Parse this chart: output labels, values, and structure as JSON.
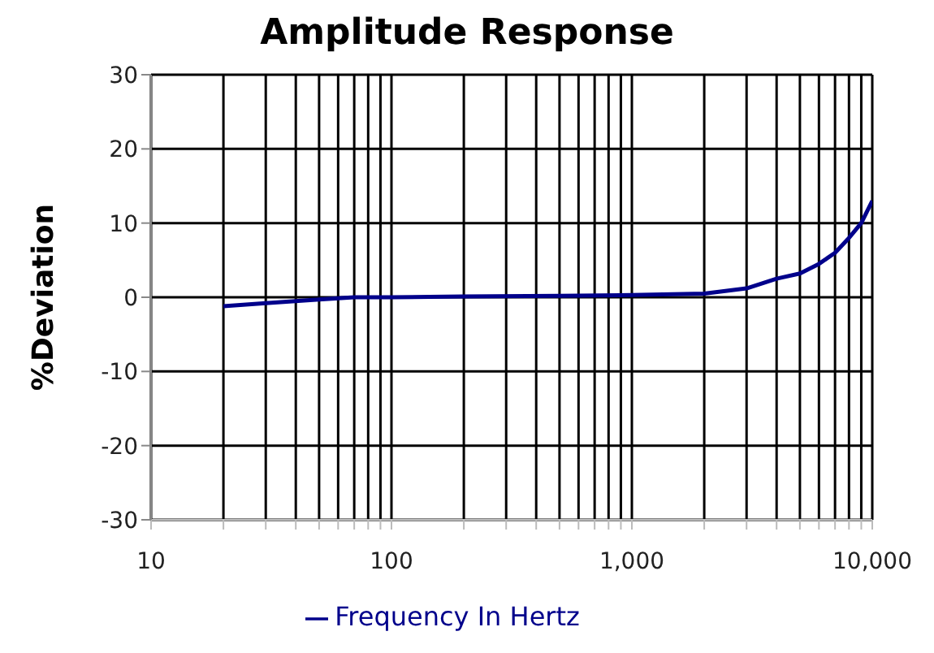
{
  "chart_data": {
    "type": "line",
    "title": "Amplitude Response",
    "ylabel": "%Deviation",
    "x": [
      20,
      30,
      50,
      70,
      100,
      200,
      500,
      1000,
      2000,
      3000,
      4000,
      5000,
      6000,
      7000,
      8000,
      9000,
      10000
    ],
    "series": [
      {
        "name": "Frequency In Hertz",
        "color": "#00008b",
        "values": [
          -1.2,
          -0.8,
          -0.3,
          0,
          0,
          0.1,
          0.2,
          0.3,
          0.5,
          1.2,
          2.5,
          3.2,
          4.5,
          6,
          8,
          10,
          13
        ]
      }
    ],
    "log": "x",
    "xlim": [
      10,
      10000
    ],
    "xticks": [
      10,
      {
        "value": 20,
        "label": null
      },
      {
        "value": 30,
        "label": null
      },
      {
        "value": 40,
        "label": null
      },
      {
        "value": 50,
        "label": null
      },
      {
        "value": 60,
        "label": null
      },
      {
        "value": 70,
        "label": null
      },
      {
        "value": 80,
        "label": null
      },
      {
        "value": 90,
        "label": null
      },
      {
        "value": 100,
        "label": "100"
      },
      {
        "value": 200,
        "label": null
      },
      {
        "value": 300,
        "label": null
      },
      {
        "value": 400,
        "label": null
      },
      {
        "value": 500,
        "label": null
      },
      {
        "value": 600,
        "label": null
      },
      {
        "value": 700,
        "label": null
      },
      {
        "value": 800,
        "label": null
      },
      {
        "value": 900,
        "label": null
      },
      {
        "value": 1000,
        "label": "1,000"
      },
      {
        "value": 2000,
        "label": null
      },
      {
        "value": 3000,
        "label": null
      },
      {
        "value": 4000,
        "label": null
      },
      {
        "value": 5000,
        "label": null
      },
      {
        "value": 6000,
        "label": null
      },
      {
        "value": 7000,
        "label": null
      },
      {
        "value": 8000,
        "label": null
      },
      {
        "value": 9000,
        "label": null
      },
      {
        "value": 10000,
        "label": "10,000"
      }
    ],
    "ylim": [
      -30,
      30
    ],
    "yticks": [
      -30,
      -20,
      -10,
      0,
      10,
      20,
      30
    ],
    "grid": true,
    "legend": "bottom",
    "marker": "none",
    "line_style": "solid"
  }
}
